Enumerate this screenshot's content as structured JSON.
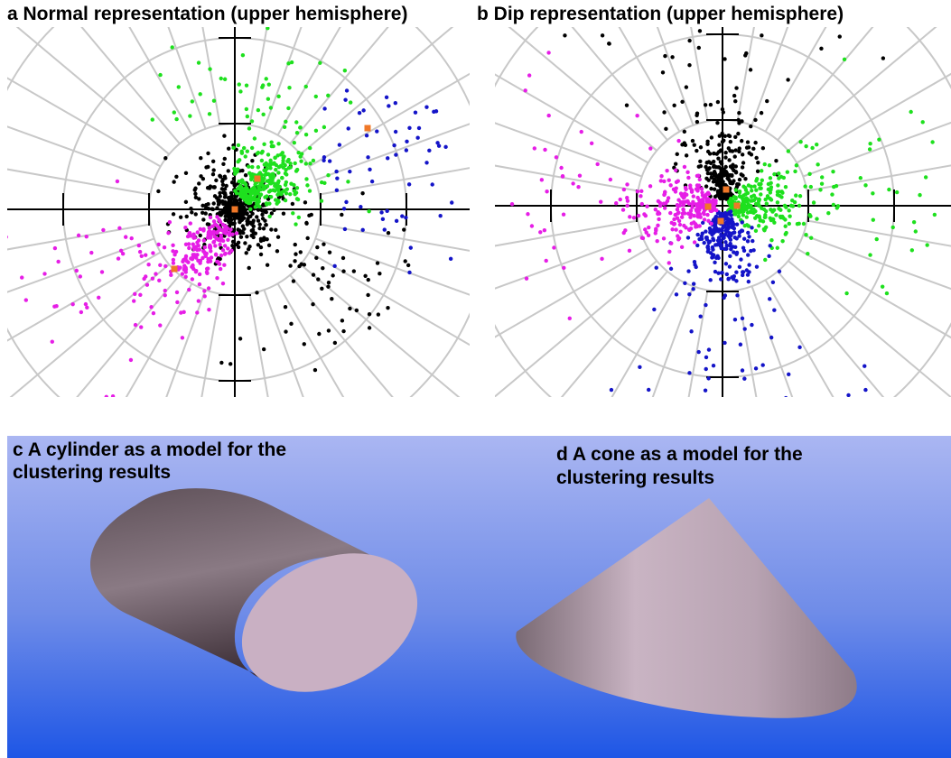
{
  "panels": [
    {
      "title": "a Normal representation (upper hemisphere)"
    },
    {
      "title": "b Dip representation (upper hemisphere)"
    },
    {
      "title_lines": [
        "c A cylinder as a model for the",
        "clustering results"
      ]
    },
    {
      "title_lines": [
        "d A cone as a model for the",
        "clustering results"
      ]
    }
  ]
}
